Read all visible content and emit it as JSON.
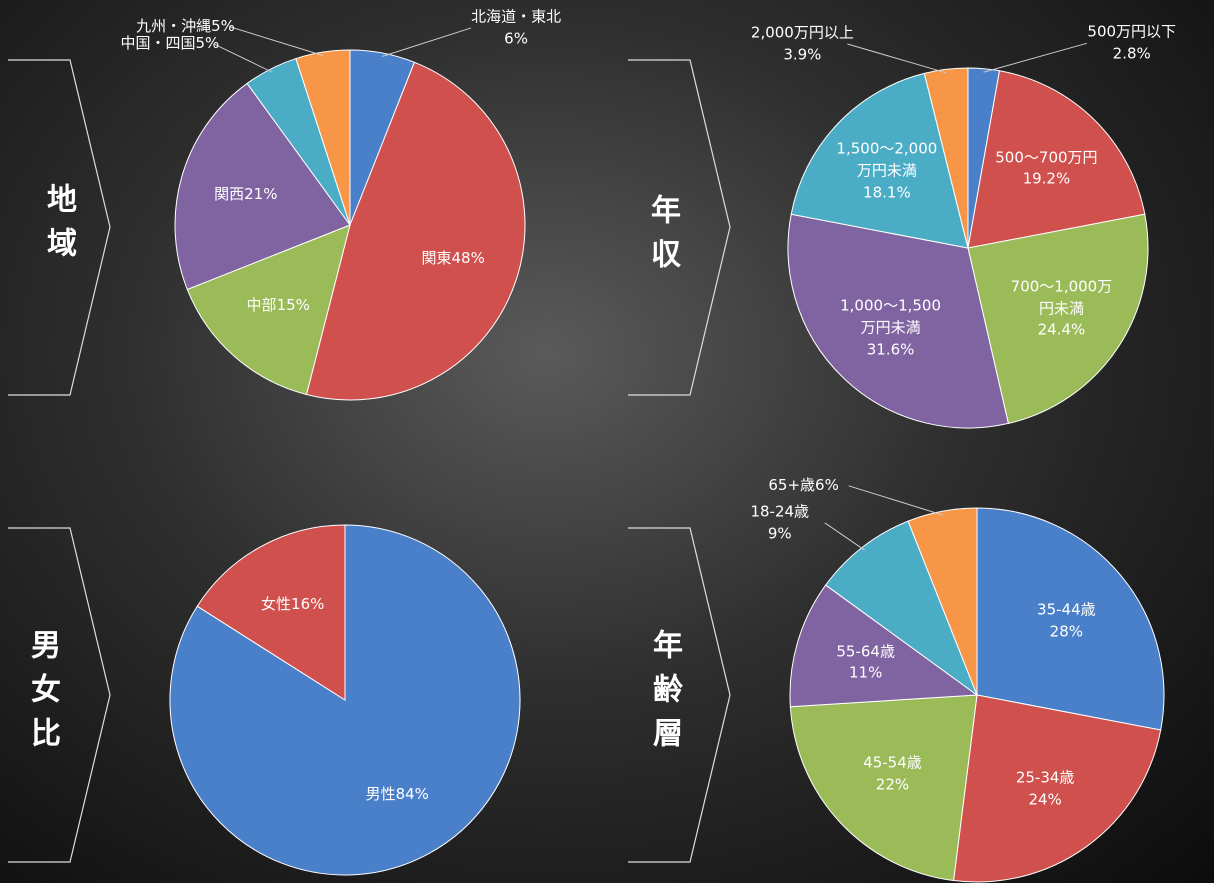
{
  "chart_data": [
    {
      "type": "pie",
      "title": "地域",
      "categories": [
        "北海道・東北",
        "関東",
        "中部",
        "関西",
        "中国・四国",
        "九州・沖縄"
      ],
      "values": [
        6,
        48,
        15,
        21,
        5,
        5
      ],
      "value_labels": [
        "6%",
        "48%",
        "15%",
        "21%",
        "5%",
        "5%"
      ],
      "colors": [
        "#4a7fc9",
        "#d0504d",
        "#9bbb59",
        "#8064a2",
        "#4bacc6",
        "#f79646"
      ]
    },
    {
      "type": "pie",
      "title": "年収",
      "categories": [
        "500万円以下",
        "500～700万円",
        "700～1,000万円未満",
        "1,000～1,500万円未満",
        "1,500～2,000万円未満",
        "2,000万円以上"
      ],
      "values": [
        2.8,
        19.2,
        24.4,
        31.6,
        18.1,
        3.9
      ],
      "value_labels": [
        "2.8%",
        "19.2%",
        "24.4%",
        "31.6%",
        "18.1%",
        "3.9%"
      ],
      "colors": [
        "#4a7fc9",
        "#d0504d",
        "#9bbb59",
        "#8064a2",
        "#4bacc6",
        "#f79646"
      ]
    },
    {
      "type": "pie",
      "title": "男女比",
      "categories": [
        "男性",
        "女性"
      ],
      "values": [
        84,
        16
      ],
      "value_labels": [
        "84%",
        "16%"
      ],
      "colors": [
        "#4a7fc9",
        "#d0504d"
      ]
    },
    {
      "type": "pie",
      "title": "年齢層",
      "categories": [
        "35-44歳",
        "25-34歳",
        "45-54歳",
        "55-64歳",
        "18-24歳",
        "65+歳"
      ],
      "values": [
        28,
        24,
        22,
        11,
        9,
        6
      ],
      "value_labels": [
        "28%",
        "24%",
        "22%",
        "11%",
        "9%",
        "6%"
      ],
      "colors": [
        "#4a7fc9",
        "#d0504d",
        "#9bbb59",
        "#8064a2",
        "#4bacc6",
        "#f79646"
      ]
    }
  ]
}
